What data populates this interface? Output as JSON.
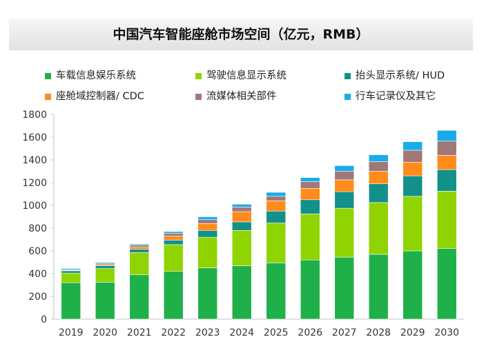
{
  "chart_data": {
    "type": "bar",
    "stacked": true,
    "title": "中国汽车智能座舱市场空间（亿元，RMB）",
    "xlabel": "",
    "ylabel": "",
    "ylim": [
      0,
      1800
    ],
    "yticks": [
      0,
      200,
      400,
      600,
      800,
      1000,
      1200,
      1400,
      1600,
      1800
    ],
    "grid": false,
    "legend_position": "top",
    "categories": [
      "2019",
      "2020",
      "2021",
      "2022",
      "2023",
      "2024",
      "2025",
      "2026",
      "2027",
      "2028",
      "2029",
      "2030"
    ],
    "series": [
      {
        "name": "车载信息娱乐系统",
        "color": "#1fb04a",
        "values": [
          320,
          325,
          390,
          420,
          450,
          470,
          495,
          520,
          545,
          570,
          600,
          620
        ]
      },
      {
        "name": "驾驶信息显示系统",
        "color": "#8fd400",
        "values": [
          85,
          120,
          195,
          235,
          270,
          310,
          350,
          405,
          430,
          455,
          480,
          505
        ]
      },
      {
        "name": "抬头显示系统/ HUD",
        "color": "#12908a",
        "values": [
          20,
          25,
          30,
          40,
          60,
          75,
          105,
          125,
          145,
          165,
          180,
          190
        ]
      },
      {
        "name": "座舱域控制器/ CDC",
        "color": "#ff8c1a",
        "values": [
          5,
          10,
          20,
          35,
          60,
          90,
          90,
          100,
          105,
          110,
          120,
          125
        ]
      },
      {
        "name": "流媒体相关部件",
        "color": "#a07878",
        "values": [
          5,
          10,
          15,
          25,
          35,
          40,
          40,
          60,
          75,
          85,
          105,
          125
        ]
      },
      {
        "name": "行车记录仪及其它",
        "color": "#1aabea",
        "values": [
          10,
          8,
          10,
          15,
          25,
          25,
          35,
          35,
          50,
          60,
          75,
          95
        ]
      }
    ]
  }
}
